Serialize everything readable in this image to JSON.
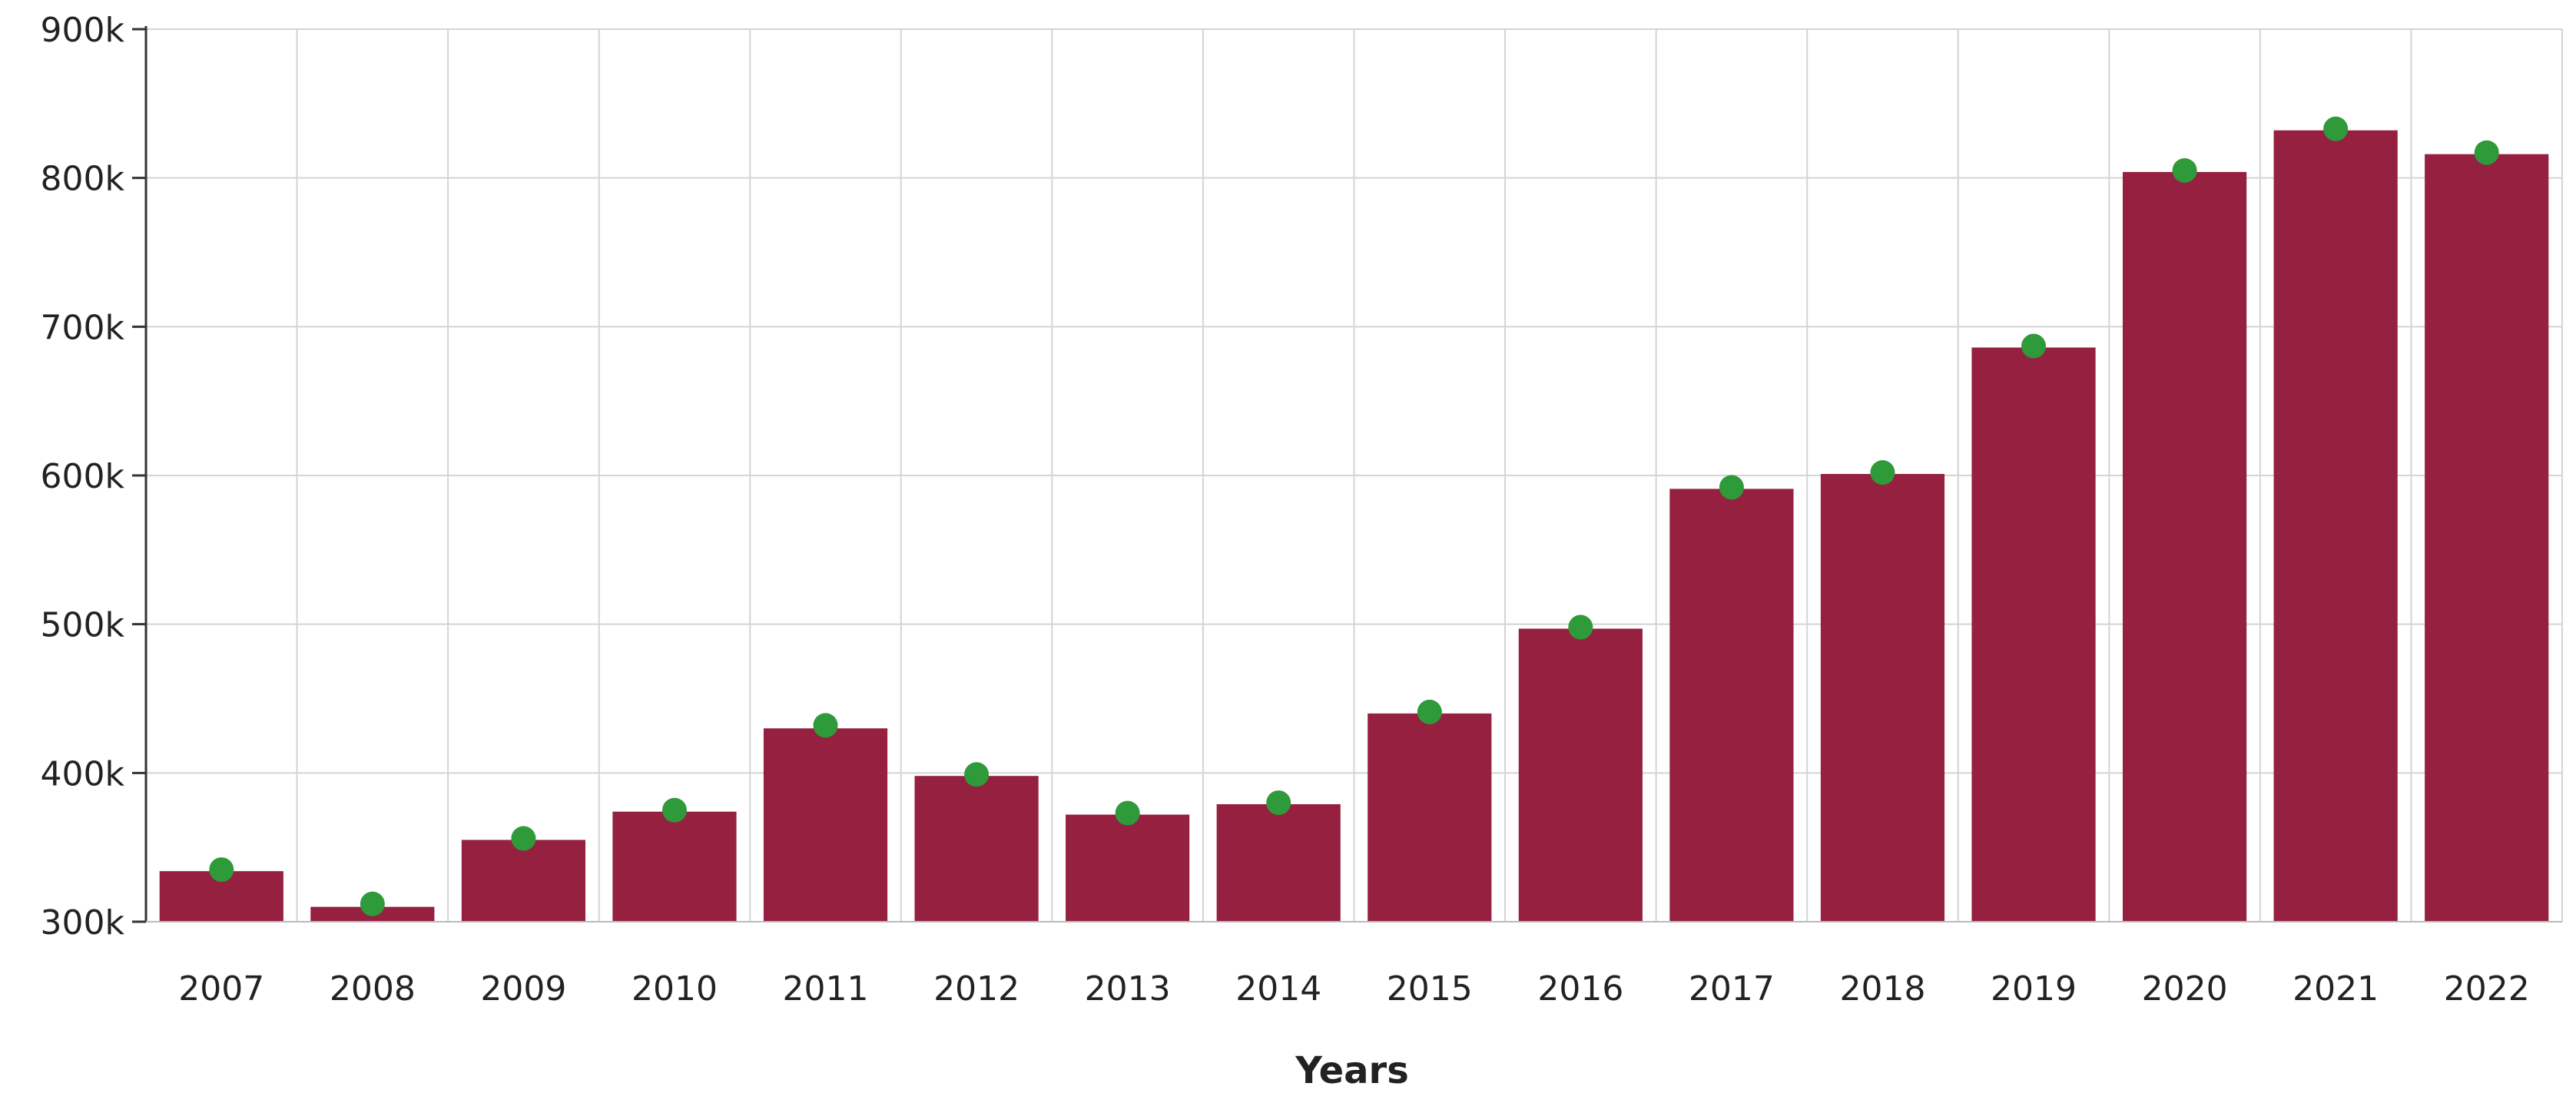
{
  "chart_data": {
    "type": "bar",
    "title": "",
    "xlabel": "Years",
    "ylabel": "",
    "categories": [
      "2007",
      "2008",
      "2009",
      "2010",
      "2011",
      "2012",
      "2013",
      "2014",
      "2015",
      "2016",
      "2017",
      "2018",
      "2019",
      "2020",
      "2021",
      "2022"
    ],
    "series": [
      {
        "type": "bar",
        "color": "#952040",
        "values": [
          334000,
          310000,
          355000,
          374000,
          430000,
          398000,
          372000,
          379000,
          440000,
          497000,
          591000,
          601000,
          686000,
          804000,
          832000,
          816000
        ]
      },
      {
        "type": "scatter",
        "color": "#2e9a3a",
        "values": [
          335000,
          312000,
          356000,
          375000,
          432000,
          399000,
          373000,
          380000,
          441000,
          498000,
          592000,
          602000,
          687000,
          805000,
          833000,
          817000
        ]
      }
    ],
    "ylim": [
      300000,
      900000
    ],
    "yticks": [
      300000,
      400000,
      500000,
      600000,
      700000,
      800000,
      900000
    ],
    "ytick_labels": [
      "300k",
      "400k",
      "500k",
      "600k",
      "700k",
      "800k",
      "900k"
    ],
    "grid": true,
    "legend": "none"
  }
}
